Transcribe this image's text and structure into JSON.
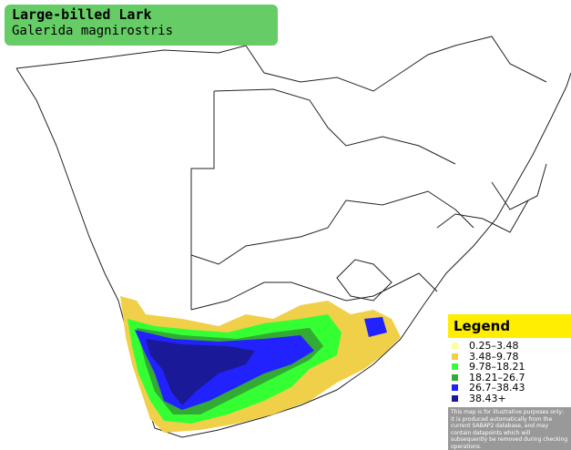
{
  "header": {
    "title": "Large-billed Lark",
    "subtitle": "Galerida magnirostris"
  },
  "legend": {
    "title": "Legend",
    "items": [
      {
        "label": "0.25–3.48",
        "color": "#ffff99"
      },
      {
        "label": "3.48–9.78",
        "color": "#f0d048"
      },
      {
        "label": "9.78–18.21",
        "color": "#33ff33"
      },
      {
        "label": "18.21–26.7",
        "color": "#33aa33"
      },
      {
        "label": "26.7–38.43",
        "color": "#2222ff"
      },
      {
        "label": "38.43+",
        "color": "#1a1a99"
      }
    ],
    "disclaimer": "This map is for illustrative purposes only; it is produced automatically from the current SABAP2 database, and may contain datapoints which will subsequently be removed during checking operations."
  }
}
